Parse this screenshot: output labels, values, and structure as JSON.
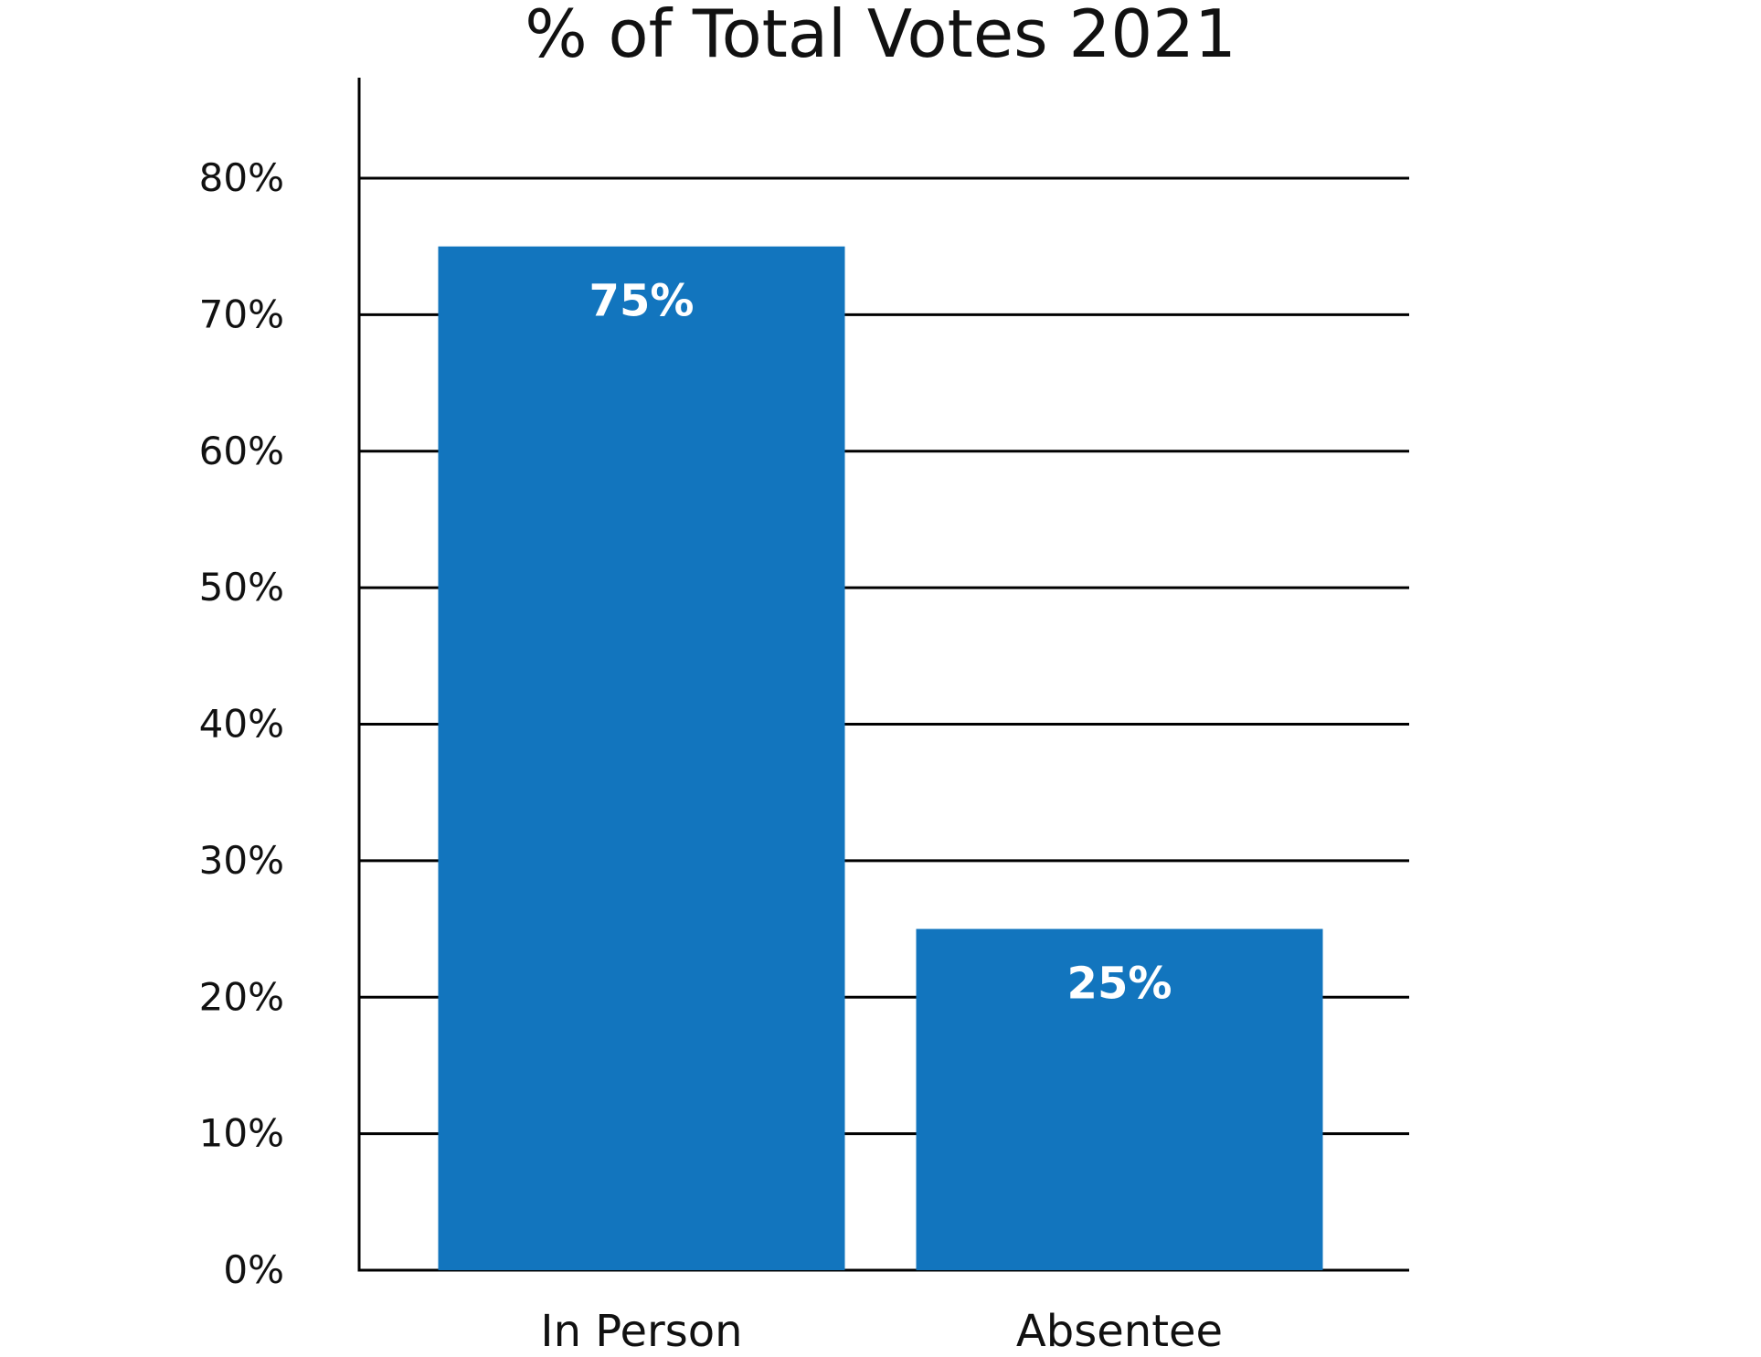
{
  "chart_data": {
    "type": "bar",
    "title": "% of Total Votes 2021",
    "xlabel": "",
    "ylabel": "",
    "categories": [
      "In Person",
      "Absentee"
    ],
    "series": [
      {
        "values": [
          75,
          25
        ],
        "data_labels": [
          "75%",
          "25%"
        ]
      }
    ],
    "ylim": [
      0,
      80
    ],
    "yticks": [
      0,
      10,
      20,
      30,
      40,
      50,
      60,
      70,
      80
    ],
    "ytick_labels": [
      "0%",
      "10%",
      "20%",
      "30%",
      "40%",
      "50%",
      "60%",
      "70%",
      "80%"
    ],
    "grid": true,
    "legend": "none",
    "bar_color": "#1275be",
    "gridline_color": "#000000",
    "data_label_color": "#ffffff"
  }
}
